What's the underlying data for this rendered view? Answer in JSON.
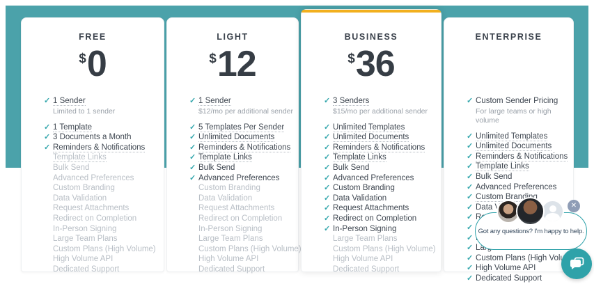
{
  "colors": {
    "band_teal": "#4BA2AA",
    "check_teal": "#35A7AD",
    "highlight_yellow": "#F2B01E",
    "text_dark": "#3B424C",
    "text_inactive": "#B9BFC6",
    "note_gray": "#9AA1A9",
    "chat_border_teal": "#2DA1A9",
    "chat_launcher_teal": "#2FA2A9",
    "close_button_slate": "#8F9DB6"
  },
  "plans": [
    {
      "name": "FREE",
      "currency": "$",
      "price": "0",
      "highlighted": false,
      "features": [
        {
          "label": "1 Sender",
          "checked": true,
          "dotted": true,
          "note": "Limited to 1 sender"
        },
        {
          "label": "1 Template",
          "checked": true,
          "dotted": true
        },
        {
          "label": "3 Documents a Month",
          "checked": true,
          "dotted": false
        },
        {
          "label": "Reminders & Notifications",
          "checked": true,
          "dotted": true
        },
        {
          "label": "Template Links",
          "checked": false,
          "dotted": true
        },
        {
          "label": "Bulk Send",
          "checked": false,
          "dotted": false
        },
        {
          "label": "Advanced Preferences",
          "checked": false,
          "dotted": false
        },
        {
          "label": "Custom Branding",
          "checked": false,
          "dotted": false
        },
        {
          "label": "Data Validation",
          "checked": false,
          "dotted": false
        },
        {
          "label": "Request Attachments",
          "checked": false,
          "dotted": false
        },
        {
          "label": "Redirect on Completion",
          "checked": false,
          "dotted": false
        },
        {
          "label": "In-Person Signing",
          "checked": false,
          "dotted": false
        },
        {
          "label": "Large Team Plans",
          "checked": false,
          "dotted": false
        },
        {
          "label": "Custom Plans (High Volume)",
          "checked": false,
          "dotted": false
        },
        {
          "label": "High Volume API",
          "checked": false,
          "dotted": false
        },
        {
          "label": "Dedicated Support",
          "checked": false,
          "dotted": false
        }
      ]
    },
    {
      "name": "LIGHT",
      "currency": "$",
      "price": "12",
      "highlighted": false,
      "features": [
        {
          "label": "1 Sender",
          "checked": true,
          "dotted": true,
          "note": "$12/mo per additional sender"
        },
        {
          "label": "5 Templates Per Sender",
          "checked": true,
          "dotted": true
        },
        {
          "label": "Unlimited Documents",
          "checked": true,
          "dotted": true
        },
        {
          "label": "Reminders & Notifications",
          "checked": true,
          "dotted": true
        },
        {
          "label": "Template Links",
          "checked": true,
          "dotted": true
        },
        {
          "label": "Bulk Send",
          "checked": true,
          "dotted": false
        },
        {
          "label": "Advanced Preferences",
          "checked": true,
          "dotted": false
        },
        {
          "label": "Custom Branding",
          "checked": false,
          "dotted": false
        },
        {
          "label": "Data Validation",
          "checked": false,
          "dotted": false
        },
        {
          "label": "Request Attachments",
          "checked": false,
          "dotted": false
        },
        {
          "label": "Redirect on Completion",
          "checked": false,
          "dotted": false
        },
        {
          "label": "In-Person Signing",
          "checked": false,
          "dotted": false
        },
        {
          "label": "Large Team Plans",
          "checked": false,
          "dotted": false
        },
        {
          "label": "Custom Plans (High Volume)",
          "checked": false,
          "dotted": false
        },
        {
          "label": "High Volume API",
          "checked": false,
          "dotted": false
        },
        {
          "label": "Dedicated Support",
          "checked": false,
          "dotted": false
        }
      ]
    },
    {
      "name": "BUSINESS",
      "currency": "$",
      "price": "36",
      "highlighted": true,
      "features": [
        {
          "label": "3 Senders",
          "checked": true,
          "dotted": true,
          "note": "$15/mo per additional sender"
        },
        {
          "label": "Unlimited Templates",
          "checked": true,
          "dotted": true
        },
        {
          "label": "Unlimited Documents",
          "checked": true,
          "dotted": true
        },
        {
          "label": "Reminders & Notifications",
          "checked": true,
          "dotted": true
        },
        {
          "label": "Template Links",
          "checked": true,
          "dotted": true
        },
        {
          "label": "Bulk Send",
          "checked": true,
          "dotted": false
        },
        {
          "label": "Advanced Preferences",
          "checked": true,
          "dotted": false
        },
        {
          "label": "Custom Branding",
          "checked": true,
          "dotted": false
        },
        {
          "label": "Data Validation",
          "checked": true,
          "dotted": false
        },
        {
          "label": "Request Attachments",
          "checked": true,
          "dotted": false
        },
        {
          "label": "Redirect on Completion",
          "checked": true,
          "dotted": false
        },
        {
          "label": "In-Person Signing",
          "checked": true,
          "dotted": false
        },
        {
          "label": "Large Team Plans",
          "checked": false,
          "dotted": false
        },
        {
          "label": "Custom Plans (High Volume)",
          "checked": false,
          "dotted": false
        },
        {
          "label": "High Volume API",
          "checked": false,
          "dotted": false
        },
        {
          "label": "Dedicated Support",
          "checked": false,
          "dotted": false
        }
      ]
    },
    {
      "name": "ENTERPRISE",
      "currency": "",
      "price": "",
      "highlighted": false,
      "features": [
        {
          "label": "Custom Sender Pricing",
          "checked": true,
          "dotted": false,
          "note": "For large teams or high volume"
        },
        {
          "label": "Unlimited Templates",
          "checked": true,
          "dotted": true
        },
        {
          "label": "Unlimited Documents",
          "checked": true,
          "dotted": true
        },
        {
          "label": "Reminders & Notifications",
          "checked": true,
          "dotted": true
        },
        {
          "label": "Template Links",
          "checked": true,
          "dotted": true
        },
        {
          "label": "Bulk Send",
          "checked": true,
          "dotted": false
        },
        {
          "label": "Advanced Preferences",
          "checked": true,
          "dotted": false
        },
        {
          "label": "Custom Branding",
          "checked": true,
          "dotted": true
        },
        {
          "label": "Data Validation",
          "checked": true,
          "dotted": false
        },
        {
          "label": "Request Attachments",
          "checked": true,
          "dotted": false
        },
        {
          "label": "Redirect on Completion",
          "checked": true,
          "dotted": false
        },
        {
          "label": "In-Person Signing",
          "checked": true,
          "dotted": false
        },
        {
          "label": "Large Team Plans",
          "checked": true,
          "dotted": false
        },
        {
          "label": "Custom Plans (High Volume)",
          "checked": true,
          "dotted": false
        },
        {
          "label": "High Volume API",
          "checked": true,
          "dotted": false
        },
        {
          "label": "Dedicated Support",
          "checked": true,
          "dotted": false
        }
      ]
    }
  ],
  "chat": {
    "message": "Got any questions? I'm happy to help.",
    "close_label": "✕",
    "avatars": [
      "support-agent-photo-1",
      "support-agent-photo-2",
      "generic-person-avatar"
    ]
  }
}
